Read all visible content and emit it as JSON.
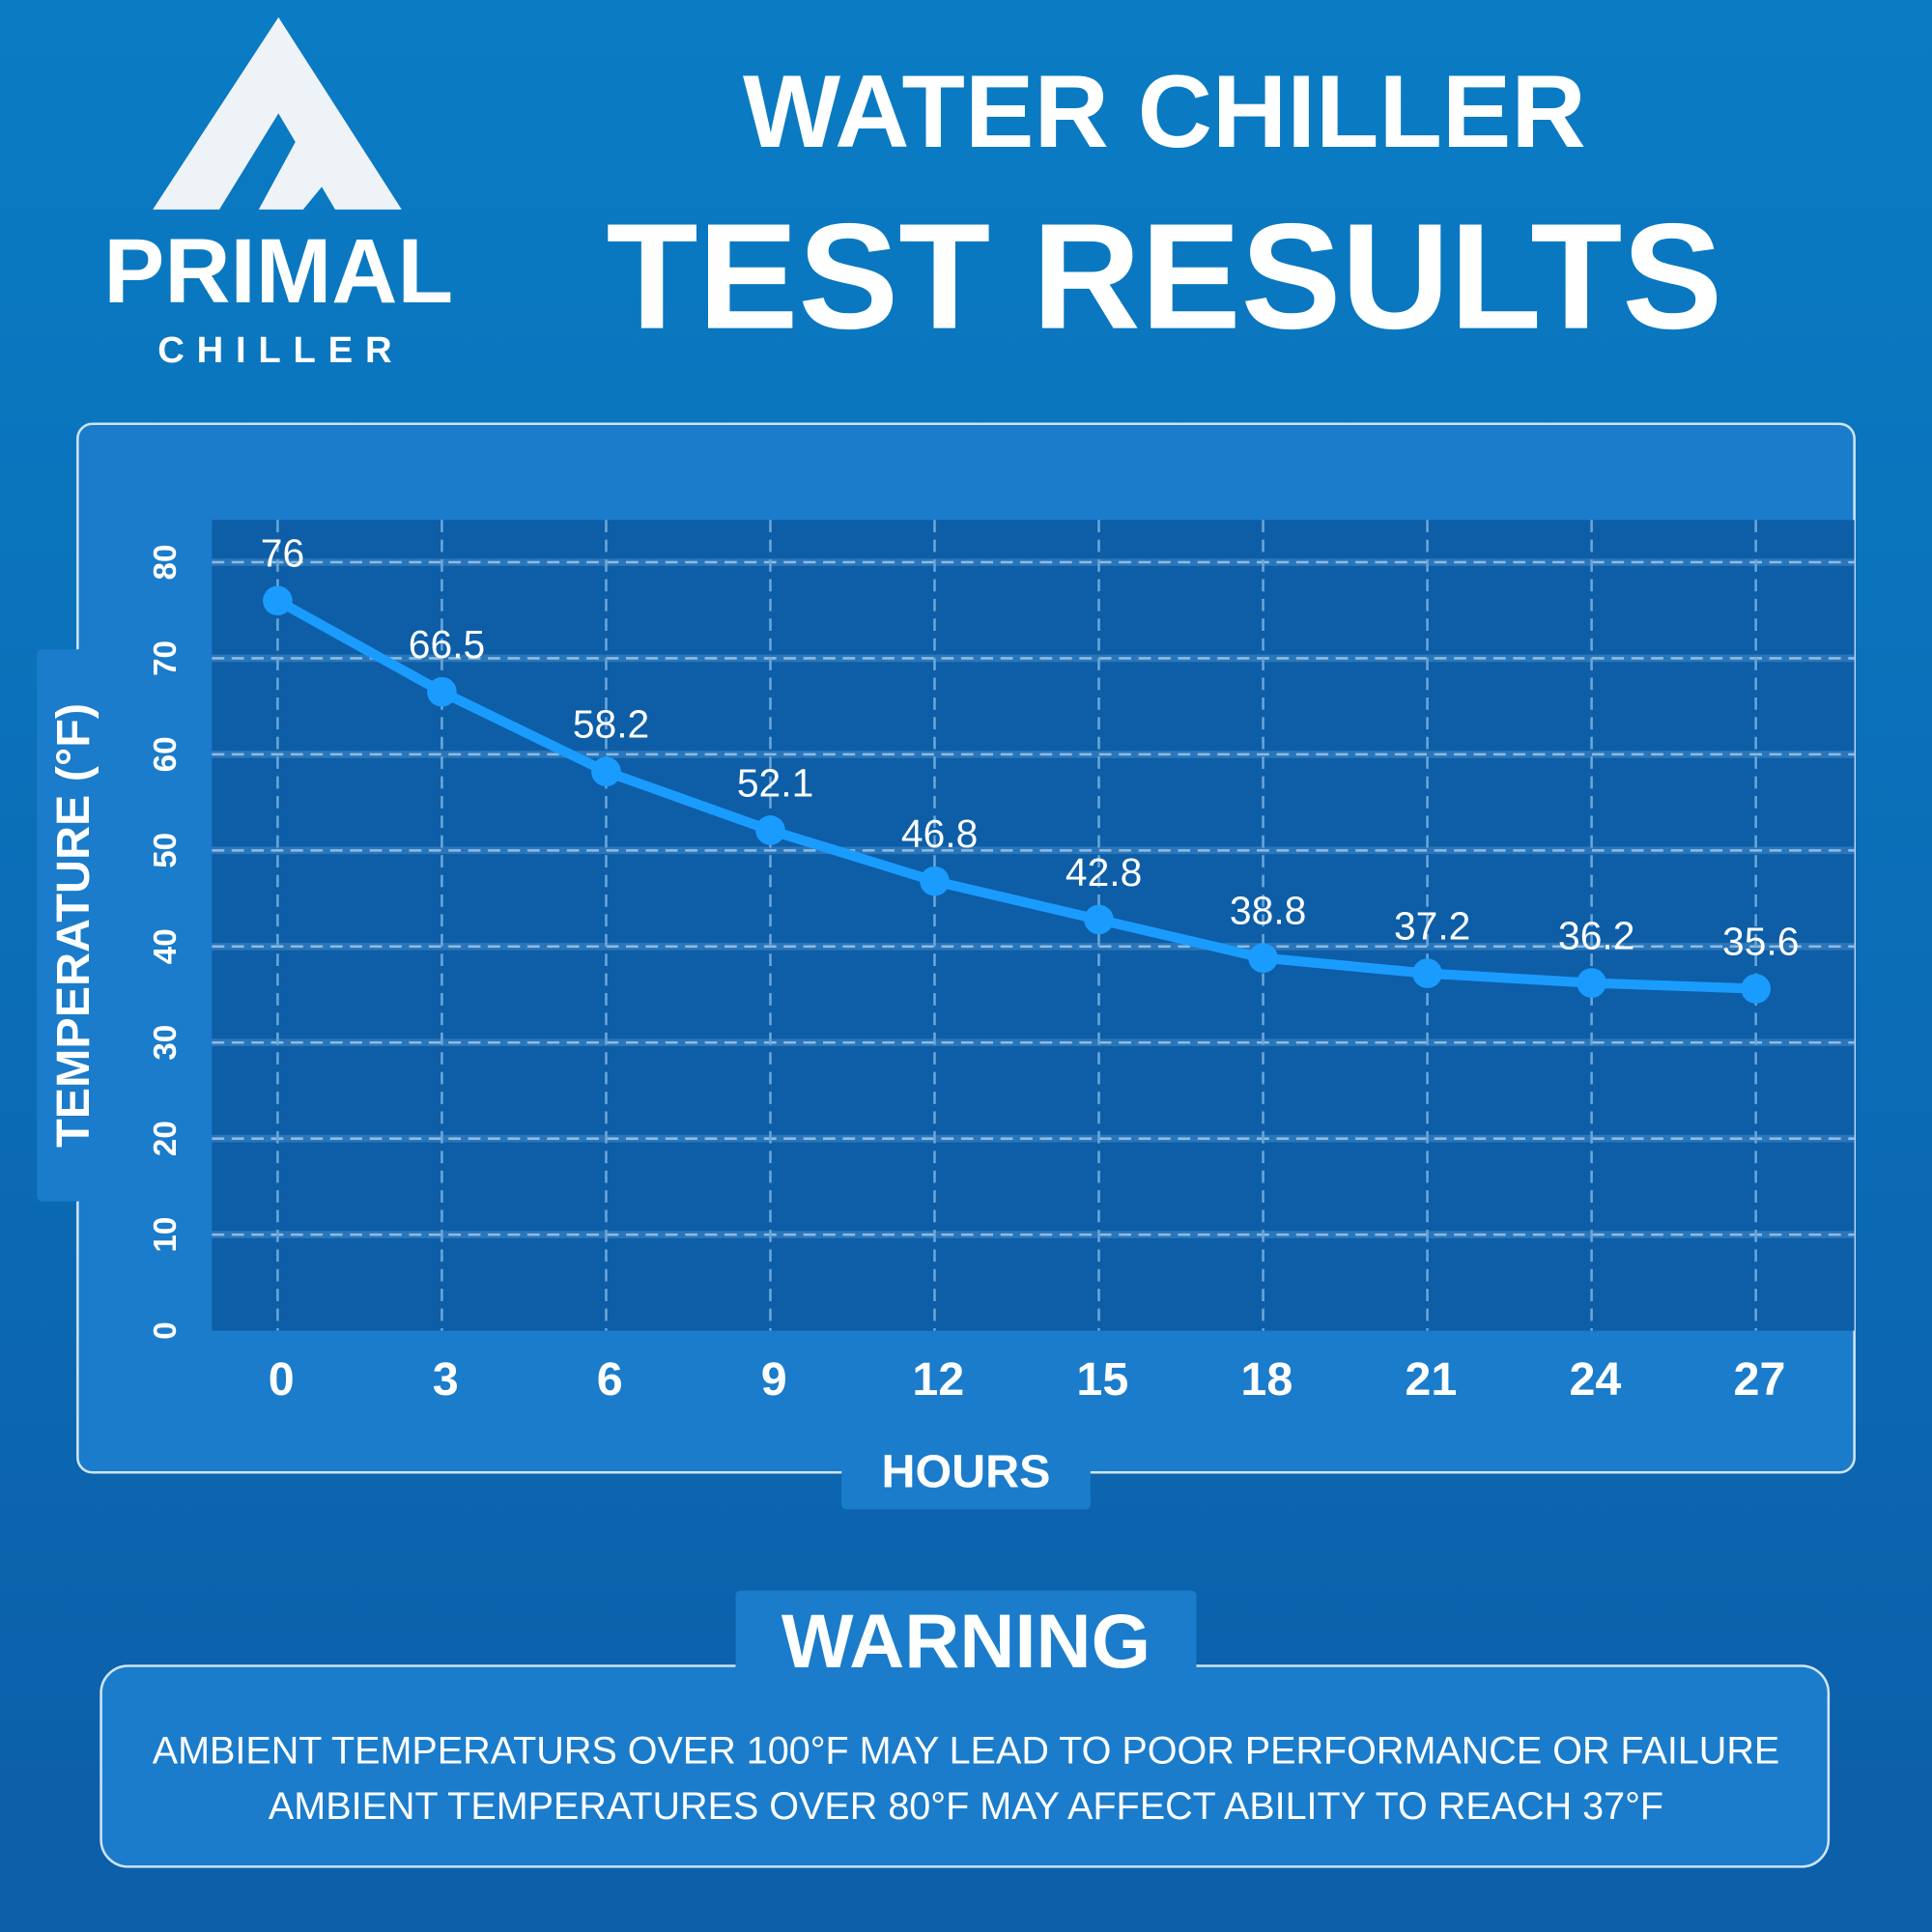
{
  "logo": {
    "name": "PRIMAL",
    "sub": "CHILLER"
  },
  "chart_data": {
    "type": "line",
    "title": "WATER CHILLER",
    "subtitle": "TEST RESULTS",
    "x": [
      0,
      3,
      6,
      9,
      12,
      15,
      18,
      21,
      24,
      27
    ],
    "series": [
      {
        "name": "Temperature",
        "color": "#1a9cff",
        "values": [
          76,
          66.5,
          58.2,
          52.1,
          46.8,
          42.8,
          38.8,
          37.2,
          36.2,
          35.6
        ]
      }
    ],
    "xlim": [
      -1.2,
      28.8
    ],
    "xticks": [
      0,
      3,
      6,
      9,
      12,
      15,
      18,
      21,
      24,
      27
    ],
    "ylim": [
      0,
      84.4
    ],
    "yticks": [
      0,
      10,
      20,
      30,
      40,
      50,
      60,
      70,
      80
    ],
    "x_label": "HOURS",
    "y_label": "TEMPERATURE (°F)",
    "grid": true
  },
  "warning": {
    "title": "WARNING",
    "lines": [
      "AMBIENT TEMPERATURS OVER 100°F MAY LEAD TO POOR PERFORMANCE OR FAILURE",
      "AMBIENT TEMPERATURES OVER 80°F MAY AFFECT ABILITY TO REACH 37°F"
    ]
  }
}
